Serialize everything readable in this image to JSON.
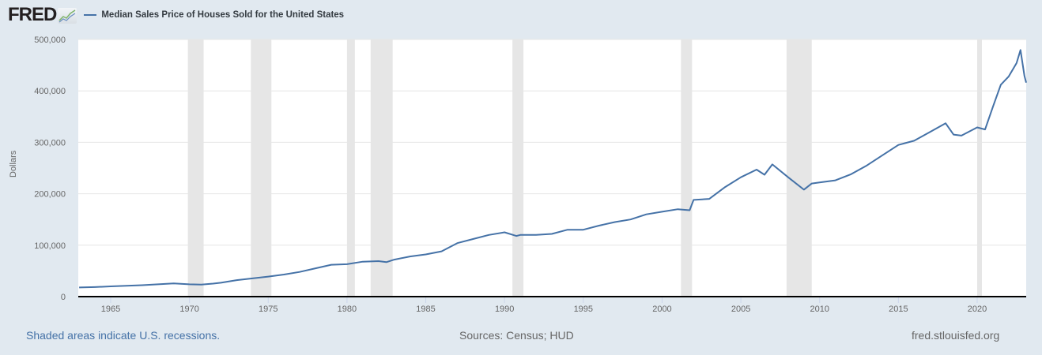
{
  "header": {
    "logo_text": "FRED",
    "logo_icon": "chart-line-icon",
    "legend_label": "Median Sales Price of Houses Sold for the United States",
    "legend_color": "#4572a7"
  },
  "footer": {
    "recession_note": "Shaded areas indicate U.S. recessions.",
    "sources": "Sources: Census; HUD",
    "site": "fred.stlouisfed.org"
  },
  "chart_data": {
    "type": "line",
    "title": "Median Sales Price of Houses Sold for the United States",
    "xlabel": "",
    "ylabel": "Dollars",
    "ylim": [
      0,
      500000
    ],
    "xlim": [
      1963.0,
      2023.25
    ],
    "y_ticks": [
      "0",
      "100,000",
      "200,000",
      "300,000",
      "400,000",
      "500,000"
    ],
    "y_tick_values": [
      0,
      100000,
      200000,
      300000,
      400000,
      500000
    ],
    "x_ticks": [
      "1965",
      "1970",
      "1975",
      "1980",
      "1985",
      "1990",
      "1995",
      "2000",
      "2005",
      "2010",
      "2015",
      "2020"
    ],
    "x_tick_values": [
      1965,
      1970,
      1975,
      1980,
      1985,
      1990,
      1995,
      2000,
      2005,
      2010,
      2015,
      2020
    ],
    "grid": true,
    "legend_position": "top",
    "line_color": "#4572a7",
    "recessions": [
      [
        1969.9,
        1970.9
      ],
      [
        1973.9,
        1975.2
      ],
      [
        1980.0,
        1980.5
      ],
      [
        1981.5,
        1982.9
      ],
      [
        1990.5,
        1991.2
      ],
      [
        2001.2,
        2001.9
      ],
      [
        2007.9,
        2009.5
      ],
      [
        2020.0,
        2020.3
      ]
    ],
    "series": [
      {
        "name": "Median Sales Price of Houses Sold for the United States",
        "x": [
          1963.0,
          1964.0,
          1965.0,
          1966.0,
          1967.0,
          1968.0,
          1969.0,
          1970.0,
          1970.75,
          1971.5,
          1972.0,
          1973.0,
          1974.0,
          1975.0,
          1976.0,
          1977.0,
          1978.0,
          1979.0,
          1980.0,
          1981.0,
          1982.0,
          1982.5,
          1983.0,
          1984.0,
          1985.0,
          1986.0,
          1987.0,
          1988.0,
          1989.0,
          1990.0,
          1990.75,
          1991.0,
          1992.0,
          1993.0,
          1994.0,
          1995.0,
          1996.0,
          1997.0,
          1998.0,
          1999.0,
          2000.0,
          2001.0,
          2001.75,
          2002.0,
          2003.0,
          2004.0,
          2005.0,
          2006.0,
          2006.5,
          2007.0,
          2008.0,
          2009.0,
          2009.5,
          2010.0,
          2011.0,
          2012.0,
          2013.0,
          2014.0,
          2015.0,
          2016.0,
          2017.0,
          2018.0,
          2018.5,
          2019.0,
          2020.0,
          2020.5,
          2021.0,
          2021.5,
          2022.0,
          2022.5,
          2022.75,
          2023.0,
          2023.25
        ],
        "values": [
          17800,
          18500,
          20000,
          21000,
          22300,
          24000,
          25600,
          24000,
          23500,
          25300,
          27000,
          32000,
          35500,
          39000,
          43000,
          48000,
          55000,
          62000,
          63000,
          68000,
          69000,
          67000,
          72000,
          78000,
          82000,
          88000,
          104000,
          112000,
          120000,
          125000,
          118000,
          120000,
          120000,
          122000,
          130000,
          130000,
          138000,
          145000,
          150000,
          160000,
          165000,
          170000,
          168000,
          188000,
          190000,
          213000,
          232000,
          247000,
          237000,
          257000,
          232000,
          208000,
          220000,
          222000,
          226000,
          238000,
          255000,
          275000,
          295000,
          303000,
          320000,
          337000,
          315000,
          313000,
          329000,
          325000,
          369000,
          412000,
          428000,
          454000,
          479500,
          429000,
          416000
        ]
      }
    ]
  }
}
